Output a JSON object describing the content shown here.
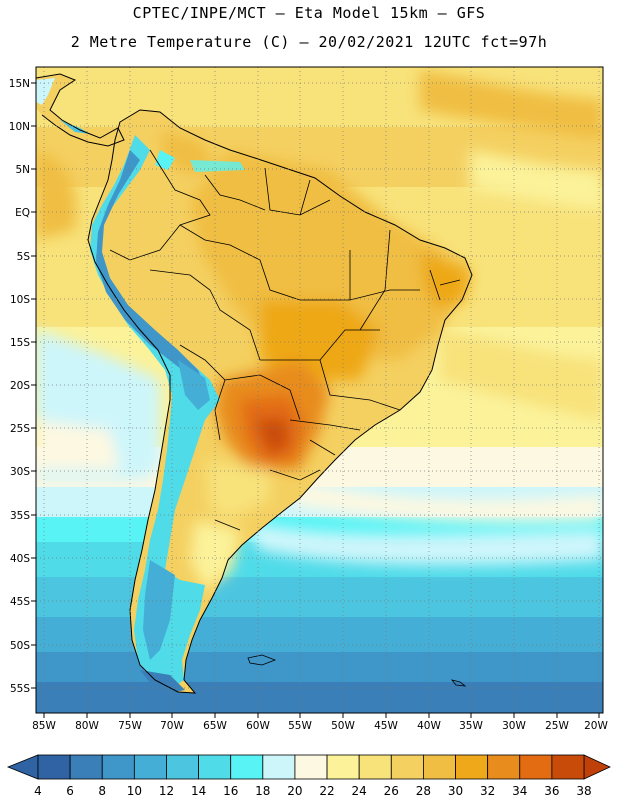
{
  "header": {
    "line1": "CPTEC/INPE/MCT –  Eta Model 15km – GFS",
    "line2": "2 Metre Temperature (C) – 20/02/2021 12UTC fct=97h"
  },
  "axes": {
    "lat_labels": [
      "15N",
      "10N",
      "5N",
      "EQ",
      "5S",
      "10S",
      "15S",
      "20S",
      "25S",
      "30S",
      "35S",
      "40S",
      "45S",
      "50S",
      "55S"
    ],
    "lon_labels": [
      "85W",
      "80W",
      "75W",
      "70W",
      "65W",
      "60W",
      "55W",
      "50W",
      "45W",
      "40W",
      "35W",
      "30W",
      "25W",
      "20W"
    ]
  },
  "colorbar": {
    "labels": [
      "4",
      "6",
      "8",
      "10",
      "12",
      "14",
      "16",
      "18",
      "20",
      "22",
      "24",
      "26",
      "28",
      "30",
      "32",
      "34",
      "36",
      "38"
    ],
    "under_color": "#2f63a4",
    "over_color": "#c0400a",
    "colors": [
      "#2f63a4",
      "#3a7fb8",
      "#3f96c9",
      "#45aed6",
      "#4cc6e0",
      "#50dbe9",
      "#58f3f5",
      "#cdf6fb",
      "#fdf8e1",
      "#fbf29a",
      "#f8e27a",
      "#f4d061",
      "#f0be43",
      "#eea819",
      "#e88c1e",
      "#e36c12",
      "#c94b0a"
    ]
  }
}
